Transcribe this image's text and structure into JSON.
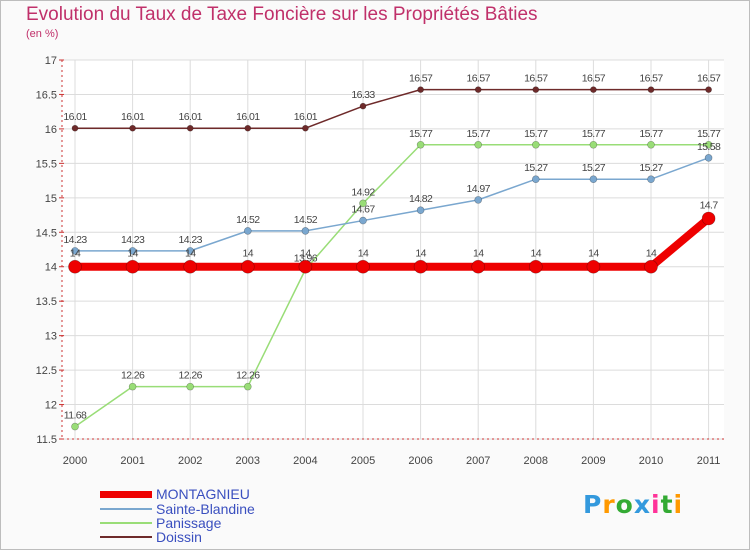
{
  "chart_data": {
    "type": "line",
    "title": "Evolution du Taux de Taxe Foncière sur les Propriétés Bâties",
    "ylabel": "(en %)",
    "xlabel": "",
    "ylim": [
      11.5,
      17
    ],
    "yticks": [
      "11.5",
      "12",
      "12.5",
      "13",
      "13.5",
      "14",
      "14.5",
      "15",
      "15.5",
      "16",
      "16.5",
      "17"
    ],
    "categories": [
      "2000",
      "2001",
      "2002",
      "2003",
      "2004",
      "2005",
      "2006",
      "2007",
      "2008",
      "2009",
      "2010",
      "2011"
    ],
    "series": [
      {
        "name": "Doissin",
        "color": "#6e2a2a",
        "width": 1.5,
        "marker": 3,
        "values": [
          16.01,
          16.01,
          16.01,
          16.01,
          16.01,
          16.33,
          16.57,
          16.57,
          16.57,
          16.57,
          16.57,
          16.57
        ],
        "labels": [
          "16.01",
          "16.01",
          "16.01",
          "16.01",
          "16.01",
          "16.33",
          "16.57",
          "16.57",
          "16.57",
          "16.57",
          "16.57",
          "16.57"
        ]
      },
      {
        "name": "Panissage",
        "color": "#99dd77",
        "width": 1.5,
        "marker": 3.5,
        "values": [
          11.68,
          12.26,
          12.26,
          12.26,
          13.96,
          14.92,
          15.77,
          15.77,
          15.77,
          15.77,
          15.77,
          15.77
        ],
        "labels": [
          "11.68",
          "12.26",
          "12.26",
          "12.26",
          "13.96",
          "14.92",
          "15.77",
          "15.77",
          "15.77",
          "15.77",
          "15.77",
          "15.77"
        ]
      },
      {
        "name": "Sainte-Blandine",
        "color": "#7aa7cf",
        "width": 1.5,
        "marker": 3.5,
        "values": [
          14.23,
          14.23,
          14.23,
          14.52,
          14.52,
          14.67,
          14.82,
          14.97,
          15.27,
          15.27,
          15.27,
          15.58
        ],
        "labels": [
          "14.23",
          "14.23",
          "14.23",
          "14.52",
          "14.52",
          "14.67",
          "14.82",
          "14.97",
          "15.27",
          "15.27",
          "15.27",
          "15.58"
        ]
      },
      {
        "name": "MONTAGNIEU",
        "color": "#ee0000",
        "width": 8,
        "marker": 6.5,
        "values": [
          14,
          14,
          14,
          14,
          14,
          14,
          14,
          14,
          14,
          14,
          14,
          14.7
        ],
        "labels": [
          "14",
          "14",
          "14",
          "14",
          "14",
          "14",
          "14",
          "14",
          "14",
          "14",
          "14",
          "14.7"
        ]
      }
    ],
    "legend": [
      "MONTAGNIEU",
      "Sainte-Blandine",
      "Panissage",
      "Doissin"
    ]
  },
  "logo": {
    "letters": [
      "P",
      "r",
      "o",
      "x",
      "i",
      "t",
      "i"
    ],
    "colors": [
      "#3399dd",
      "#ff9900",
      "#33aa33",
      "#3399dd",
      "#ff3399",
      "#33aa33",
      "#ff9900"
    ]
  }
}
